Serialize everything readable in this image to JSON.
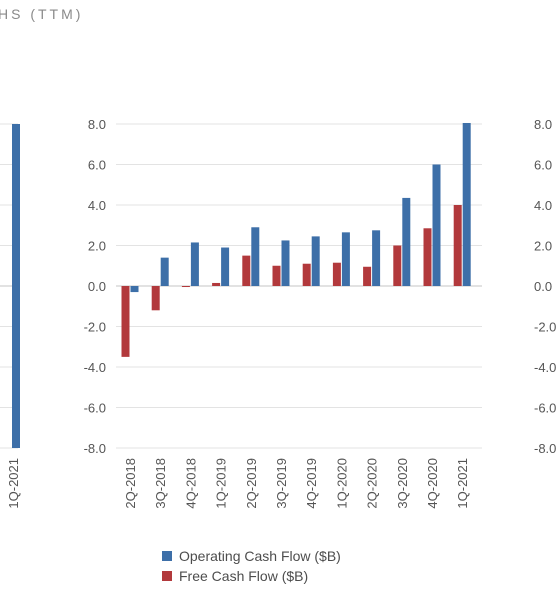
{
  "chart_data": [
    {
      "type": "bar",
      "partial": "left-edge",
      "title": "HS (TTM)",
      "categories": [
        "1Q-2021"
      ],
      "series": [
        {
          "name": "Operating Cash Flow ($B)",
          "values": [
            -8.0
          ]
        }
      ],
      "ylim": [
        -8.0,
        8.0
      ],
      "grid": true,
      "colors": {
        "operating": "#3d6fa8",
        "free": "#b2393c"
      }
    },
    {
      "type": "bar",
      "categories": [
        "2Q-2018",
        "3Q-2018",
        "4Q-2018",
        "1Q-2019",
        "2Q-2019",
        "3Q-2019",
        "4Q-2019",
        "1Q-2020",
        "2Q-2020",
        "3Q-2020",
        "4Q-2020",
        "1Q-2021"
      ],
      "series": [
        {
          "name": "Free Cash Flow ($B)",
          "values": [
            -3.5,
            -1.2,
            -0.05,
            0.15,
            1.5,
            1.0,
            1.1,
            1.15,
            0.95,
            2.0,
            2.85,
            4.0
          ]
        },
        {
          "name": "Operating Cash Flow ($B)",
          "values": [
            -0.3,
            1.4,
            2.15,
            1.9,
            2.9,
            2.25,
            2.45,
            2.65,
            2.75,
            4.35,
            6.0,
            8.05
          ]
        }
      ],
      "yticks": [
        "8.0",
        "6.0",
        "4.0",
        "2.0",
        "0.0",
        "-2.0",
        "-4.0",
        "-6.0",
        "-8.0"
      ],
      "ylim": [
        -8.0,
        8.0
      ],
      "grid": true,
      "legend": "bottom",
      "colors": {
        "operating": "#3d6fa8",
        "free": "#b2393c"
      }
    },
    {
      "type": "bar",
      "partial": "right-edge",
      "yticks": [
        "8.0",
        "6.0",
        "4.0",
        "2.0",
        "0.0",
        "-2.0",
        "-4.0",
        "-6.0",
        "-8.0"
      ],
      "ylim": [
        -8.0,
        8.0
      ]
    }
  ],
  "legend_items": [
    {
      "label": "Operating Cash Flow ($B)",
      "color": "#3d6fa8"
    },
    {
      "label": "Free Cash Flow ($B)",
      "color": "#b2393c"
    }
  ]
}
